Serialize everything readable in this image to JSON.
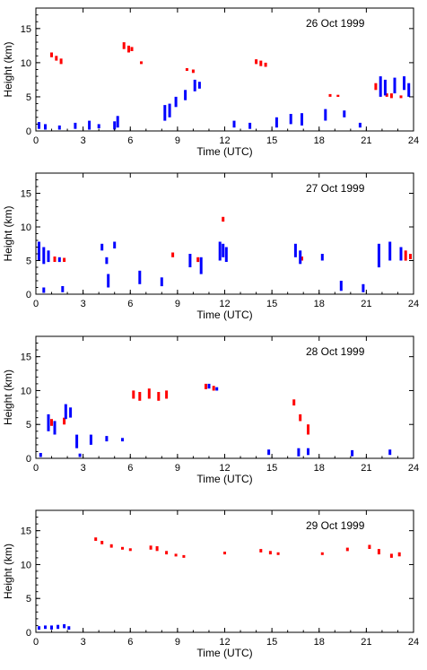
{
  "chart_data": [
    {
      "type": "scatter",
      "title": "26 Oct 1999",
      "xlabel": "Time (UTC)",
      "ylabel": "Height (km)",
      "xlim": [
        0,
        24
      ],
      "ylim": [
        0,
        18
      ],
      "xticks": [
        "0",
        "3",
        "6",
        "9",
        "12",
        "15",
        "18",
        "21",
        "24"
      ],
      "yticks": [
        "0",
        "5",
        "10",
        "15"
      ],
      "colors": {
        "red": "#ff0000",
        "blue": "#0000ff"
      },
      "series": [
        {
          "color": "red",
          "segments": [
            [
              1.0,
              10.8,
              11.5
            ],
            [
              1.3,
              10.3,
              11.0
            ],
            [
              1.6,
              9.8,
              10.6
            ],
            [
              5.6,
              12.0,
              13.0
            ],
            [
              5.9,
              11.5,
              12.5
            ],
            [
              6.1,
              11.7,
              12.3
            ],
            [
              6.7,
              9.8,
              10.2
            ],
            [
              9.6,
              8.8,
              9.2
            ],
            [
              10.0,
              8.5,
              9.0
            ],
            [
              14.0,
              9.8,
              10.5
            ],
            [
              14.3,
              9.5,
              10.3
            ],
            [
              14.6,
              9.4,
              10.0
            ],
            [
              18.7,
              5.0,
              5.4
            ],
            [
              19.2,
              5.0,
              5.3
            ],
            [
              21.6,
              6.0,
              7.0
            ],
            [
              22.3,
              5.0,
              5.5
            ],
            [
              22.6,
              4.8,
              5.5
            ],
            [
              23.2,
              4.8,
              5.2
            ]
          ]
        },
        {
          "color": "blue",
          "segments": [
            [
              0.2,
              0.3,
              1.3
            ],
            [
              0.6,
              0.2,
              1.0
            ],
            [
              1.5,
              0.2,
              0.8
            ],
            [
              2.5,
              0.3,
              1.2
            ],
            [
              3.4,
              0.2,
              1.5
            ],
            [
              4.0,
              0.4,
              1.0
            ],
            [
              5.0,
              0.2,
              1.4
            ],
            [
              5.2,
              0.5,
              2.2
            ],
            [
              8.2,
              1.5,
              3.8
            ],
            [
              8.5,
              2.0,
              4.0
            ],
            [
              8.9,
              3.5,
              5.0
            ],
            [
              9.5,
              4.5,
              6.0
            ],
            [
              10.1,
              5.8,
              7.5
            ],
            [
              10.4,
              6.2,
              7.2
            ],
            [
              12.6,
              0.5,
              1.5
            ],
            [
              13.6,
              0.3,
              1.2
            ],
            [
              15.3,
              0.5,
              2.0
            ],
            [
              16.2,
              1.0,
              2.5
            ],
            [
              16.9,
              0.8,
              2.6
            ],
            [
              18.4,
              1.5,
              3.2
            ],
            [
              19.6,
              2.0,
              3.0
            ],
            [
              20.6,
              0.5,
              1.2
            ],
            [
              21.9,
              5.0,
              8.0
            ],
            [
              22.2,
              5.2,
              7.5
            ],
            [
              22.8,
              5.5,
              7.8
            ],
            [
              23.4,
              6.0,
              8.0
            ],
            [
              23.7,
              5.0,
              7.0
            ]
          ]
        }
      ]
    },
    {
      "type": "scatter",
      "title": "27 Oct 1999",
      "xlabel": "Time (UTC)",
      "ylabel": "Height (km)",
      "xlim": [
        0,
        24
      ],
      "ylim": [
        0,
        18
      ],
      "xticks": [
        "0",
        "3",
        "6",
        "9",
        "12",
        "15",
        "18",
        "21",
        "24"
      ],
      "yticks": [
        "0",
        "5",
        "10",
        "15"
      ],
      "colors": {
        "red": "#ff0000",
        "blue": "#0000ff"
      },
      "series": [
        {
          "color": "red",
          "segments": [
            [
              1.2,
              4.8,
              5.6
            ],
            [
              1.8,
              4.8,
              5.4
            ],
            [
              8.7,
              5.5,
              6.2
            ],
            [
              10.3,
              4.8,
              5.5
            ],
            [
              11.9,
              10.8,
              11.5
            ],
            [
              16.9,
              5.0,
              5.6
            ],
            [
              23.5,
              5.0,
              6.5
            ],
            [
              23.8,
              5.2,
              6.0
            ]
          ]
        },
        {
          "color": "blue",
          "segments": [
            [
              0.2,
              5.0,
              7.8
            ],
            [
              0.5,
              4.5,
              7.0
            ],
            [
              0.8,
              4.8,
              6.5
            ],
            [
              1.5,
              4.8,
              5.5
            ],
            [
              0.5,
              0.2,
              1.0
            ],
            [
              1.7,
              0.3,
              1.2
            ],
            [
              4.2,
              6.5,
              7.5
            ],
            [
              4.5,
              4.5,
              5.5
            ],
            [
              5.0,
              6.8,
              7.8
            ],
            [
              4.6,
              1.0,
              3.0
            ],
            [
              6.6,
              1.5,
              3.5
            ],
            [
              8.0,
              1.2,
              2.5
            ],
            [
              9.8,
              4.0,
              6.0
            ],
            [
              10.5,
              3.0,
              5.5
            ],
            [
              11.7,
              5.0,
              7.8
            ],
            [
              11.9,
              5.5,
              7.5
            ],
            [
              12.1,
              4.8,
              7.0
            ],
            [
              16.5,
              5.5,
              7.5
            ],
            [
              16.8,
              4.5,
              6.5
            ],
            [
              18.2,
              5.0,
              6.0
            ],
            [
              19.4,
              0.5,
              2.0
            ],
            [
              20.8,
              0.3,
              1.5
            ],
            [
              21.8,
              4.0,
              7.5
            ],
            [
              22.5,
              5.0,
              7.8
            ],
            [
              23.2,
              5.0,
              7.0
            ]
          ]
        }
      ]
    },
    {
      "type": "scatter",
      "title": "28 Oct 1999",
      "xlabel": "Time (UTC)",
      "ylabel": "Height (km)",
      "xlim": [
        0,
        24
      ],
      "ylim": [
        0,
        18
      ],
      "xticks": [
        "0",
        "3",
        "6",
        "9",
        "12",
        "15",
        "18",
        "21",
        "24"
      ],
      "yticks": [
        "0",
        "5",
        "10",
        "15"
      ],
      "colors": {
        "red": "#ff0000",
        "blue": "#0000ff"
      },
      "series": [
        {
          "color": "red",
          "segments": [
            [
              1.0,
              4.8,
              5.8
            ],
            [
              1.8,
              5.0,
              6.0
            ],
            [
              6.2,
              8.8,
              10.0
            ],
            [
              6.6,
              8.5,
              9.8
            ],
            [
              7.2,
              8.8,
              10.3
            ],
            [
              7.8,
              8.5,
              9.8
            ],
            [
              8.3,
              8.8,
              10.0
            ],
            [
              10.8,
              10.2,
              11.0
            ],
            [
              11.3,
              10.0,
              10.7
            ],
            [
              16.4,
              7.8,
              8.7
            ],
            [
              16.8,
              5.5,
              6.5
            ],
            [
              17.3,
              3.5,
              5.0
            ]
          ]
        },
        {
          "color": "blue",
          "segments": [
            [
              0.8,
              4.0,
              6.5
            ],
            [
              1.2,
              3.5,
              5.5
            ],
            [
              1.9,
              5.8,
              8.0
            ],
            [
              2.2,
              6.0,
              7.5
            ],
            [
              2.6,
              1.5,
              3.5
            ],
            [
              3.5,
              2.0,
              3.5
            ],
            [
              4.5,
              2.5,
              3.3
            ],
            [
              5.5,
              2.5,
              3.0
            ],
            [
              0.3,
              0.2,
              0.8
            ],
            [
              2.8,
              0.2,
              0.7
            ],
            [
              11.0,
              10.3,
              11.0
            ],
            [
              11.5,
              10.0,
              10.5
            ],
            [
              14.8,
              0.5,
              1.3
            ],
            [
              16.7,
              0.3,
              1.5
            ],
            [
              17.3,
              0.5,
              1.5
            ],
            [
              20.1,
              0.3,
              1.2
            ],
            [
              22.5,
              0.5,
              1.3
            ]
          ]
        }
      ]
    },
    {
      "type": "scatter",
      "title": "29 Oct 1999",
      "xlabel": "Time (UTC)",
      "ylabel": "Height (km)",
      "xlim": [
        0,
        24
      ],
      "ylim": [
        0,
        18
      ],
      "xticks": [
        "0",
        "3",
        "6",
        "9",
        "12",
        "15",
        "18",
        "21",
        "24"
      ],
      "yticks": [
        "0",
        "5",
        "10",
        "15"
      ],
      "colors": {
        "red": "#ff0000",
        "blue": "#0000ff"
      },
      "series": [
        {
          "color": "red",
          "segments": [
            [
              3.8,
              13.5,
              14.0
            ],
            [
              4.2,
              13.0,
              13.5
            ],
            [
              4.8,
              12.5,
              13.0
            ],
            [
              5.5,
              12.2,
              12.6
            ],
            [
              6.0,
              12.0,
              12.4
            ],
            [
              7.3,
              12.2,
              12.8
            ],
            [
              7.7,
              12.0,
              12.7
            ],
            [
              8.3,
              11.5,
              12.0
            ],
            [
              8.9,
              11.2,
              11.6
            ],
            [
              9.4,
              11.0,
              11.4
            ],
            [
              12.0,
              11.5,
              11.9
            ],
            [
              14.3,
              11.8,
              12.3
            ],
            [
              14.9,
              11.5,
              12.0
            ],
            [
              15.4,
              11.4,
              11.8
            ],
            [
              18.2,
              11.4,
              11.8
            ],
            [
              19.8,
              12.0,
              12.5
            ],
            [
              21.2,
              12.3,
              12.9
            ],
            [
              21.8,
              11.5,
              12.3
            ],
            [
              22.6,
              11.0,
              11.6
            ],
            [
              23.1,
              11.2,
              11.8
            ]
          ]
        },
        {
          "color": "blue",
          "segments": [
            [
              0.2,
              0.4,
              0.9
            ],
            [
              0.6,
              0.5,
              1.0
            ],
            [
              1.0,
              0.4,
              1.0
            ],
            [
              1.4,
              0.5,
              1.1
            ],
            [
              1.8,
              0.6,
              1.2
            ],
            [
              2.1,
              0.4,
              0.9
            ]
          ]
        }
      ]
    }
  ]
}
